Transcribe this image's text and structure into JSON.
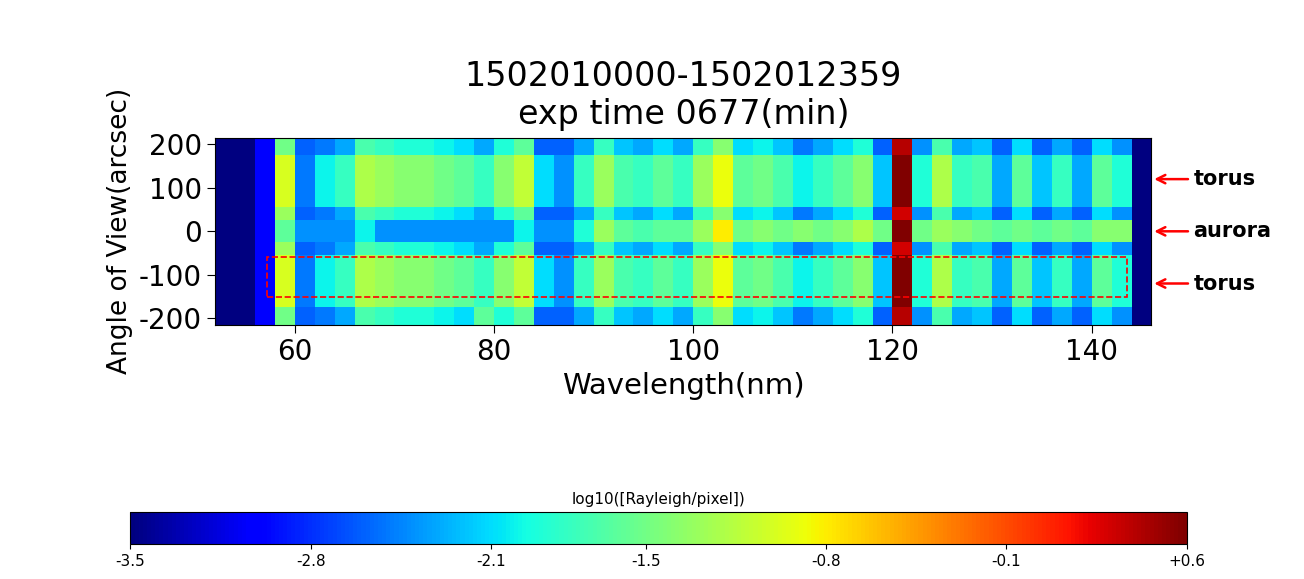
{
  "chart_data": {
    "type": "heatmap",
    "title": "1502010000-1502012359\nexp time 0677(min)",
    "x_label": "Wavelength(nm)",
    "y_label": "Angle of View(arcsec)",
    "xlim": [
      52,
      146
    ],
    "ylim": [
      -215,
      215
    ],
    "xticks": [
      60,
      80,
      100,
      120,
      140
    ],
    "yticks": [
      -200,
      -100,
      0,
      100,
      200
    ],
    "x_bins": [
      52,
      54,
      56,
      58,
      60,
      62,
      64,
      66,
      68,
      70,
      72,
      74,
      76,
      78,
      80,
      82,
      84,
      86,
      88,
      90,
      92,
      94,
      96,
      98,
      100,
      102,
      104,
      106,
      108,
      110,
      112,
      114,
      116,
      118,
      120,
      122,
      124,
      126,
      128,
      130,
      132,
      134,
      136,
      138,
      140,
      142,
      144,
      146
    ],
    "y_bins": [
      -215,
      -175,
      -55,
      -25,
      25,
      55,
      175,
      215
    ],
    "cells": [
      [
        -3.5,
        -3.5,
        -3.0,
        -1.5,
        -2.6,
        -2.5,
        -2.3,
        -1.7,
        -1.8,
        -1.9,
        -1.9,
        -2.0,
        -2.1,
        -1.6,
        -1.9,
        -1.6,
        -2.6,
        -2.6,
        -2.3,
        -1.8,
        -2.2,
        -2.3,
        -2.1,
        -2.3,
        -1.8,
        -1.4,
        -2.1,
        -2.0,
        -2.2,
        -2.5,
        -2.3,
        -2.1,
        -1.9,
        -2.6,
        0.4,
        -2.4,
        -1.7,
        -2.3,
        -2.2,
        -2.6,
        -2.1,
        -2.6,
        -2.3,
        -2.6,
        -2.1,
        -2.4,
        -3.5
      ],
      [
        -3.5,
        -3.5,
        -3.0,
        -1.0,
        -2.5,
        -2.0,
        -1.8,
        -1.2,
        -1.3,
        -1.4,
        -1.4,
        -1.5,
        -1.6,
        -1.8,
        -1.4,
        -1.1,
        -2.1,
        -2.4,
        -1.8,
        -1.3,
        -1.7,
        -1.8,
        -1.6,
        -1.8,
        -1.3,
        -0.9,
        -1.6,
        -1.5,
        -1.7,
        -2.0,
        -1.8,
        -1.6,
        -1.4,
        -2.2,
        0.6,
        -1.9,
        -1.2,
        -1.8,
        -1.7,
        -2.3,
        -1.6,
        -2.2,
        -1.8,
        -2.3,
        -1.6,
        -1.9,
        -3.5
      ],
      [
        -3.5,
        -3.5,
        -3.0,
        -1.3,
        -2.6,
        -2.5,
        -2.3,
        -1.7,
        -1.8,
        -1.9,
        -1.9,
        -2.0,
        -2.1,
        -2.3,
        -1.9,
        -1.6,
        -2.6,
        -2.6,
        -2.3,
        -1.8,
        -2.2,
        -2.3,
        -2.1,
        -2.3,
        -1.8,
        -1.4,
        -2.1,
        -2.0,
        -2.2,
        -2.5,
        -2.3,
        -2.1,
        -1.9,
        -2.6,
        0.3,
        -2.4,
        -1.7,
        -2.3,
        -2.2,
        -2.6,
        -2.1,
        -2.6,
        -2.3,
        -2.6,
        -2.1,
        -2.4,
        -3.5
      ],
      [
        -3.5,
        -3.5,
        -3.0,
        -1.6,
        -2.4,
        -2.4,
        -2.4,
        -2.0,
        -2.4,
        -2.4,
        -2.4,
        -2.4,
        -2.4,
        -2.4,
        -2.4,
        -2.0,
        -2.4,
        -2.4,
        -1.9,
        -1.3,
        -1.6,
        -1.7,
        -1.6,
        -1.6,
        -1.3,
        -0.8,
        -1.5,
        -1.4,
        -1.5,
        -1.4,
        -1.5,
        -1.4,
        -1.2,
        -1.5,
        0.6,
        -1.5,
        -1.3,
        -1.4,
        -1.5,
        -1.6,
        -1.5,
        -1.6,
        -1.5,
        -1.6,
        -1.4,
        -1.4,
        -3.5
      ],
      [
        -3.5,
        -3.5,
        -3.0,
        -1.3,
        -2.6,
        -2.5,
        -2.3,
        -1.7,
        -1.8,
        -1.9,
        -1.9,
        -2.0,
        -2.1,
        -2.3,
        -1.9,
        -1.6,
        -2.6,
        -2.6,
        -2.3,
        -1.8,
        -2.2,
        -2.3,
        -2.1,
        -2.3,
        -1.8,
        -1.4,
        -2.1,
        -2.0,
        -2.2,
        -2.5,
        -2.3,
        -2.1,
        -1.9,
        -2.6,
        0.3,
        -2.4,
        -1.7,
        -2.3,
        -2.2,
        -2.6,
        -2.1,
        -2.6,
        -2.3,
        -2.6,
        -2.1,
        -2.4,
        -3.5
      ],
      [
        -3.5,
        -3.5,
        -3.0,
        -1.0,
        -2.5,
        -2.0,
        -1.8,
        -1.2,
        -1.3,
        -1.4,
        -1.4,
        -1.5,
        -1.6,
        -1.8,
        -1.4,
        -1.1,
        -2.1,
        -2.4,
        -1.8,
        -1.3,
        -1.7,
        -1.8,
        -1.6,
        -1.8,
        -1.3,
        -0.9,
        -1.6,
        -1.5,
        -1.7,
        -2.0,
        -1.8,
        -1.6,
        -1.4,
        -2.2,
        0.6,
        -1.9,
        -1.2,
        -1.8,
        -1.7,
        -2.3,
        -1.6,
        -2.2,
        -1.8,
        -2.3,
        -1.6,
        -1.9,
        -3.5
      ],
      [
        -3.5,
        -3.5,
        -3.0,
        -1.5,
        -2.6,
        -2.5,
        -2.3,
        -1.7,
        -1.8,
        -1.9,
        -1.9,
        -2.0,
        -2.1,
        -2.3,
        -1.9,
        -1.6,
        -2.6,
        -2.6,
        -2.3,
        -1.8,
        -2.2,
        -2.3,
        -2.1,
        -2.3,
        -1.8,
        -1.4,
        -2.1,
        -2.0,
        -2.2,
        -2.5,
        -2.3,
        -2.1,
        -1.9,
        -2.6,
        0.4,
        -2.4,
        -1.7,
        -2.3,
        -2.2,
        -2.6,
        -2.1,
        -2.6,
        -2.3,
        -2.6,
        -2.1,
        -2.4,
        -3.5
      ]
    ],
    "colorbar_label": "log10([Rayleigh/pixel])",
    "colorbar_range": [
      -3.5,
      0.6
    ],
    "colorbar_ticks": [
      -3.5,
      -2.8,
      -2.1,
      -1.5,
      -0.8,
      -0.1,
      {
        "value": 0.6,
        "label": "+0.6"
      }
    ],
    "highlight_box": {
      "x": [
        57.2,
        143.5
      ],
      "y": [
        -150,
        -60
      ]
    },
    "annotations": [
      {
        "text": "torus",
        "angle": 120
      },
      {
        "text": "aurora",
        "angle": 0
      },
      {
        "text": "torus",
        "angle": -120
      }
    ]
  }
}
